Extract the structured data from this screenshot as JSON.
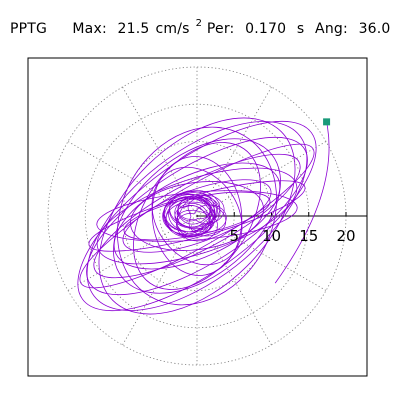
{
  "header": {
    "label": "PPTG",
    "max_label": "Max:",
    "max_value": "21.5",
    "max_unit": "cm/s",
    "max_unit_exp": "2",
    "per_label": "Per:",
    "per_value": "0.170",
    "per_unit": "s",
    "ang_label": "Ang:",
    "ang_value": "36.0"
  },
  "chart_data": {
    "type": "polar-trajectory",
    "title": "PPTG",
    "radial_ticks": [
      5,
      10,
      15,
      20
    ],
    "radial_range": [
      0,
      23
    ],
    "angular_gridlines_deg": [
      30,
      60,
      90,
      120,
      150,
      210,
      240,
      270,
      300,
      330
    ],
    "grid": "dotted",
    "peak": {
      "value": 21.5,
      "unit": "cm/s2",
      "angle_deg": 36.0,
      "period_s": 0.17
    },
    "trace_color": "#8b00d4",
    "peak_marker_color": "#1a9a7a"
  }
}
